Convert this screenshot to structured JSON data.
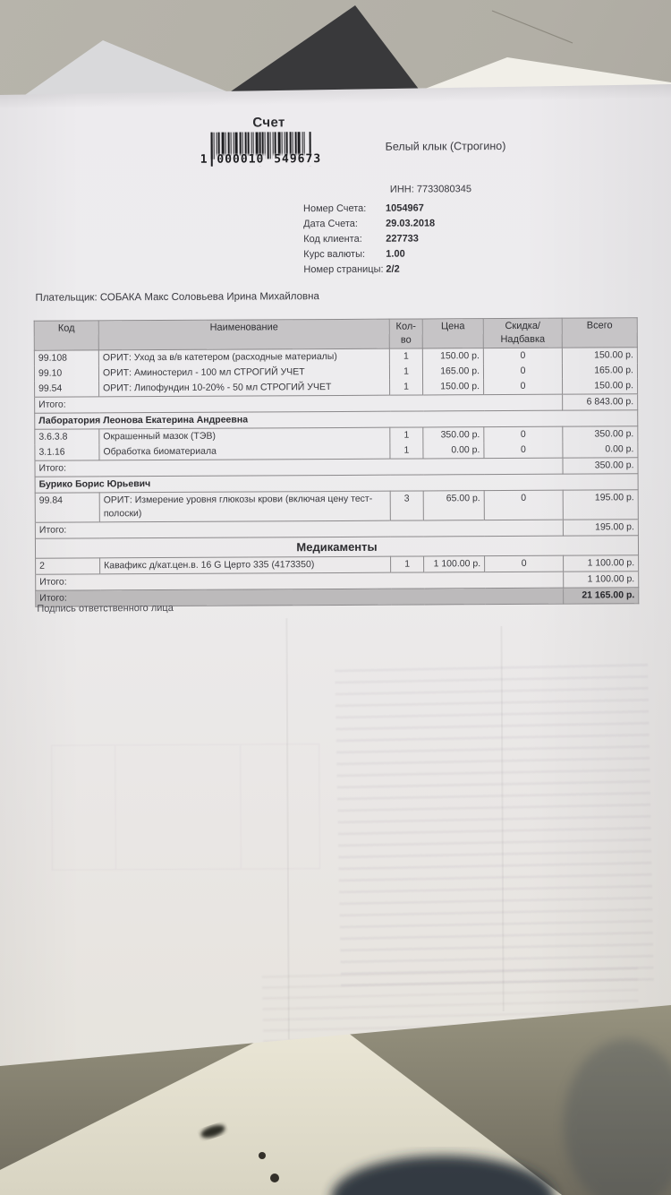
{
  "theme": {
    "paper": "#eae8ea",
    "ink": "#35353a",
    "table_border": "#8b898b",
    "header_bg": "#c6c4c6",
    "total_bg": "#bcbabb",
    "wall": "#b2afa6",
    "wood": "#8f8b7b",
    "cream": "#e6e2d2",
    "dark_object": "#39393b"
  },
  "document": {
    "title": "Счет",
    "barcode": {
      "lead_digit": "1",
      "group1": "000010",
      "group2": "549673"
    },
    "clinic_name": "Белый клык (Строгино)",
    "inn": "ИНН: 7733080345",
    "meta": [
      {
        "label": "Номер Счета:",
        "value": "1054967"
      },
      {
        "label": "Дата Счета:",
        "value": "29.03.2018"
      },
      {
        "label": "Код клиента:",
        "value": "227733"
      },
      {
        "label": "Курс валюты:",
        "value": "1.00"
      },
      {
        "label": "Номер страницы:",
        "value": "2/2"
      }
    ],
    "payer": "Плательщик: СОБАКА Макс Соловьева Ирина Михайловна",
    "signature": "Подпись ответственного лица"
  },
  "table": {
    "headers": [
      "Код",
      "Наименование",
      "Кол-во",
      "Цена",
      "Скидка/Надбавка",
      "Всего"
    ],
    "subtotal_label": "Итого:",
    "sections": [
      {
        "header": null,
        "rows": [
          {
            "code": "99.108",
            "name": "ОРИТ: Уход за в/в катетером (расходные материалы)",
            "qty": "1",
            "price": "150.00 р.",
            "discount": "0",
            "total": "150.00 р."
          },
          {
            "code": "99.10",
            "name": "ОРИТ: Аминостерил - 100 мл СТРОГИЙ УЧЕТ",
            "qty": "1",
            "price": "165.00 р.",
            "discount": "0",
            "total": "165.00 р."
          },
          {
            "code": "99.54",
            "name": "ОРИТ: Липофундин 10-20% - 50 мл СТРОГИЙ УЧЕТ",
            "qty": "1",
            "price": "150.00 р.",
            "discount": "0",
            "total": "150.00 р."
          }
        ],
        "subtotal": "6 843.00 р."
      },
      {
        "header": "Лаборатория Леонова Екатерина Андреевна",
        "centered": false,
        "rows": [
          {
            "code": "3.6.3.8",
            "name": "Окрашенный мазок (ТЭВ)",
            "qty": "1",
            "price": "350.00 р.",
            "discount": "0",
            "total": "350.00 р."
          },
          {
            "code": "3.1.16",
            "name": "Обработка биоматериала",
            "qty": "1",
            "price": "0.00 р.",
            "discount": "0",
            "total": "0.00 р."
          }
        ],
        "subtotal": "350.00 р."
      },
      {
        "header": "Бурико Борис Юрьевич",
        "centered": false,
        "rows": [
          {
            "code": "99.84",
            "name": "ОРИТ: Измерение уровня глюкозы крови (включая цену тест-полоски)",
            "qty": "3",
            "price": "65.00 р.",
            "discount": "0",
            "total": "195.00 р."
          }
        ],
        "subtotal": "195.00 р."
      },
      {
        "header": "Медикаменты",
        "centered": true,
        "rows": [
          {
            "code": "2",
            "name": "Кавафикс д/кат.цен.в. 16 G Церто 335 (4173350)",
            "qty": "1",
            "price": "1 100.00 р.",
            "discount": "0",
            "total": "1 100.00 р."
          }
        ],
        "subtotal": "1 100.00 р."
      }
    ],
    "grand_total_label": "Итого:",
    "grand_total": "21 165.00 р."
  }
}
